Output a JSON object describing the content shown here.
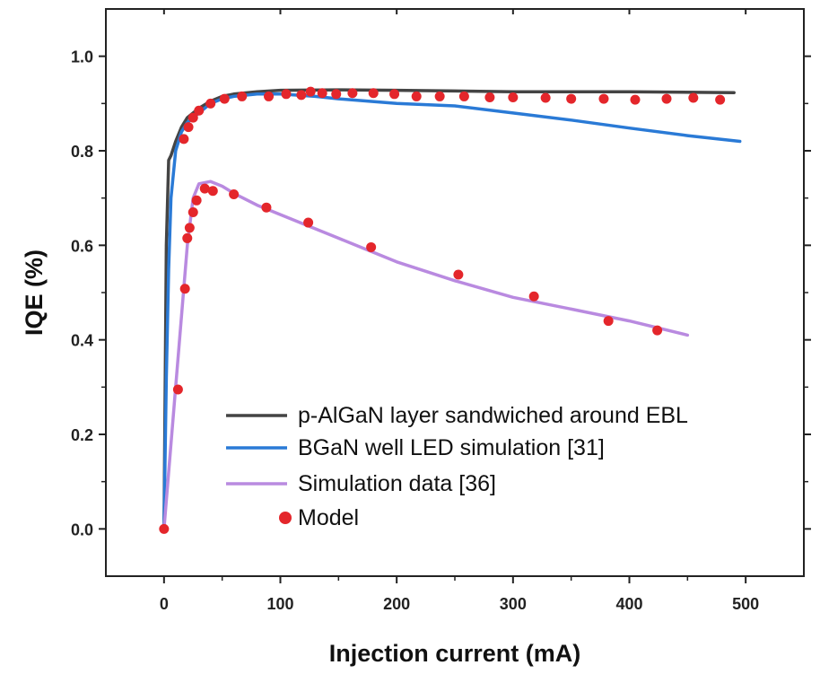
{
  "chart_data": {
    "type": "line",
    "xlabel": "Injection current (mA)",
    "ylabel": "IQE (%)",
    "xlim": [
      -50,
      550
    ],
    "ylim": [
      -0.1,
      1.1
    ],
    "x_ticks": [
      0,
      100,
      200,
      300,
      400,
      500
    ],
    "y_ticks": [
      0.0,
      0.2,
      0.4,
      0.6,
      0.8,
      1.0
    ],
    "x_tick_labels": [
      "0",
      "100",
      "200",
      "300",
      "400",
      "500"
    ],
    "y_tick_labels": [
      "0.0",
      "0.2",
      "0.4",
      "0.6",
      "0.8",
      "1.0"
    ],
    "grid": false,
    "legend_position": "lower-right",
    "series": [
      {
        "name": "p-AlGaN layer sandwiched around EBL",
        "kind": "line",
        "color": "#444444",
        "x": [
          0,
          2,
          4,
          6,
          10,
          15,
          20,
          30,
          40,
          50,
          60,
          80,
          100,
          150,
          200,
          300,
          400,
          490
        ],
        "y": [
          0.0,
          0.6,
          0.78,
          0.79,
          0.82,
          0.85,
          0.87,
          0.89,
          0.905,
          0.915,
          0.92,
          0.925,
          0.928,
          0.929,
          0.928,
          0.925,
          0.925,
          0.923
        ]
      },
      {
        "name": "BGaN well LED simulation [31]",
        "kind": "line",
        "color": "#2a7ad6",
        "x": [
          0,
          2,
          4,
          6,
          10,
          15,
          20,
          30,
          40,
          50,
          60,
          80,
          100,
          130,
          150,
          200,
          250,
          300,
          350,
          400,
          450,
          495
        ],
        "y": [
          0.0,
          0.32,
          0.55,
          0.7,
          0.8,
          0.84,
          0.86,
          0.88,
          0.9,
          0.91,
          0.915,
          0.92,
          0.92,
          0.915,
          0.91,
          0.9,
          0.895,
          0.88,
          0.865,
          0.848,
          0.832,
          0.82
        ]
      },
      {
        "name": "Simulation data [36]",
        "kind": "line",
        "color": "#b98ae0",
        "x": [
          0,
          5,
          10,
          15,
          20,
          25,
          30,
          40,
          50,
          60,
          80,
          100,
          150,
          200,
          250,
          300,
          350,
          400,
          450
        ],
        "y": [
          0.0,
          0.15,
          0.3,
          0.45,
          0.6,
          0.7,
          0.73,
          0.735,
          0.725,
          0.71,
          0.685,
          0.665,
          0.615,
          0.565,
          0.525,
          0.49,
          0.465,
          0.44,
          0.41
        ]
      },
      {
        "name": "Model",
        "kind": "scatter",
        "color": "#e4262b",
        "points": [
          [
            0,
            0.0
          ],
          [
            12,
            0.295
          ],
          [
            18,
            0.508
          ],
          [
            20,
            0.615
          ],
          [
            22,
            0.637
          ],
          [
            25,
            0.67
          ],
          [
            28,
            0.695
          ],
          [
            35,
            0.72
          ],
          [
            42,
            0.715
          ],
          [
            60,
            0.708
          ],
          [
            88,
            0.68
          ],
          [
            124,
            0.648
          ],
          [
            178,
            0.596
          ],
          [
            253,
            0.538
          ],
          [
            318,
            0.492
          ],
          [
            382,
            0.44
          ],
          [
            424,
            0.42
          ],
          [
            17,
            0.825
          ],
          [
            21,
            0.85
          ],
          [
            25,
            0.87
          ],
          [
            30,
            0.885
          ],
          [
            40,
            0.9
          ],
          [
            52,
            0.91
          ],
          [
            67,
            0.915
          ],
          [
            90,
            0.915
          ],
          [
            105,
            0.92
          ],
          [
            118,
            0.918
          ],
          [
            126,
            0.925
          ],
          [
            136,
            0.922
          ],
          [
            148,
            0.92
          ],
          [
            162,
            0.922
          ],
          [
            180,
            0.922
          ],
          [
            198,
            0.92
          ],
          [
            217,
            0.915
          ],
          [
            237,
            0.915
          ],
          [
            258,
            0.915
          ],
          [
            280,
            0.913
          ],
          [
            300,
            0.913
          ],
          [
            328,
            0.912
          ],
          [
            350,
            0.91
          ],
          [
            378,
            0.91
          ],
          [
            405,
            0.908
          ],
          [
            432,
            0.91
          ],
          [
            455,
            0.912
          ],
          [
            478,
            0.908
          ]
        ]
      }
    ]
  }
}
